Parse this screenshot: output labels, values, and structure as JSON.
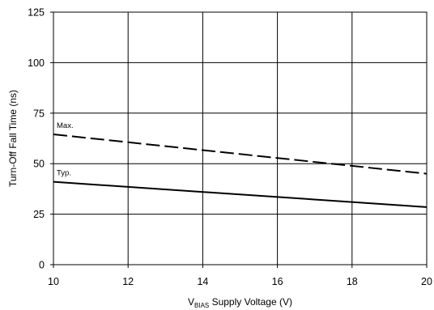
{
  "chart_data": {
    "type": "line",
    "xlabel": {
      "main": "V",
      "sub": "BIAS",
      "rest": " Supply Voltage (V)"
    },
    "ylabel": "Turn-Off Fall Time (ns)",
    "xlim": [
      10,
      20
    ],
    "ylim": [
      0,
      125
    ],
    "xticks": [
      10,
      12,
      14,
      16,
      18,
      20
    ],
    "yticks": [
      0,
      25,
      50,
      75,
      100,
      125
    ],
    "grid": true,
    "series": [
      {
        "name": "Max.",
        "style": "dashed",
        "color": "#000000",
        "x": [
          10,
          20
        ],
        "y": [
          64.5,
          45
        ]
      },
      {
        "name": "Typ.",
        "style": "solid",
        "color": "#000000",
        "x": [
          10,
          20
        ],
        "y": [
          41,
          28.5
        ]
      }
    ]
  }
}
